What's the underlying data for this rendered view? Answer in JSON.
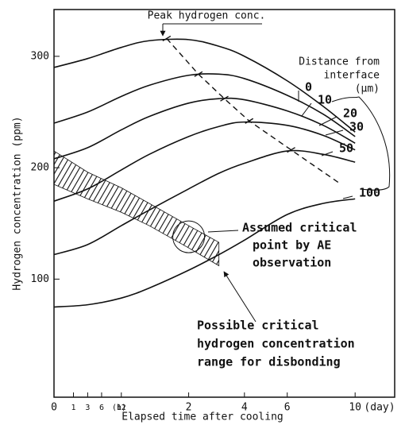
{
  "chart_data": {
    "type": "line",
    "y_label": "Hydrogen concentration (ppm)",
    "x_label": "Elapsed time after cooling",
    "x_unit_hours": "(h)",
    "x_unit_days": "(day)",
    "x_scale": "sqrt",
    "xlim": [
      0,
      12.8
    ],
    "ylim": [
      -6,
      342
    ],
    "xticks": [
      0,
      {
        "value": 0.0417,
        "label": "1"
      },
      {
        "value": 0.125,
        "label": "3"
      },
      {
        "value": 0.25,
        "label": "6"
      },
      {
        "value": 0.5,
        "label": "12"
      },
      2,
      4,
      6,
      10
    ],
    "yticks": [
      100,
      200,
      300
    ],
    "color": "#111111",
    "x": [
      0,
      0.125,
      0.5,
      1,
      2,
      3,
      4,
      6,
      8,
      10
    ],
    "series": [
      {
        "name": "0",
        "values": [
          290,
          298,
          308,
          314,
          315,
          309,
          300,
          278,
          255,
          232
        ]
      },
      {
        "name": "10",
        "values": [
          240,
          250,
          264,
          274,
          283,
          284,
          280,
          265,
          248,
          228
        ]
      },
      {
        "name": "20",
        "values": [
          208,
          218,
          234,
          246,
          258,
          262,
          261,
          251,
          238,
          222
        ]
      },
      {
        "name": "30",
        "values": [
          170,
          181,
          198,
          212,
          228,
          237,
          241,
          238,
          229,
          216
        ]
      },
      {
        "name": "50",
        "values": [
          122,
          131,
          148,
          162,
          181,
          195,
          204,
          215,
          212,
          205
        ]
      },
      {
        "name": "100",
        "values": [
          75,
          77,
          83,
          92,
          108,
          122,
          135,
          158,
          168,
          172
        ]
      }
    ],
    "legend_title": [
      "Distance from",
      "interface",
      "(μm)"
    ],
    "peak_label": "Peak hydrogen conc.",
    "peak_line": {
      "x": [
        1.4,
        2.3,
        3.2,
        4.2,
        6.2,
        9
      ],
      "values": [
        316,
        284,
        262,
        242,
        216,
        186
      ]
    },
    "critical_band": {
      "x": [
        0,
        0.125,
        0.5,
        1,
        2,
        3
      ],
      "upper": [
        215,
        196,
        182,
        168,
        148,
        133
      ],
      "lower": [
        185,
        172,
        160,
        148,
        128,
        112
      ]
    },
    "critical_point": {
      "x": 2,
      "value": 138,
      "label": [
        "Assumed critical",
        "point by AE",
        "observation"
      ]
    },
    "band_label": [
      "Possible critical",
      "hydrogen concentration",
      "range for disbonding"
    ]
  }
}
